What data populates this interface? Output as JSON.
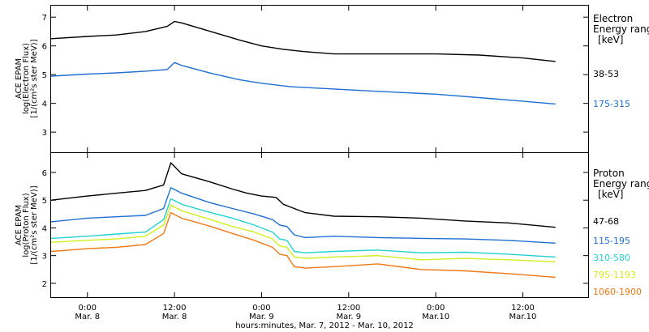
{
  "chart_data": [
    {
      "type": "line",
      "panel": "electron",
      "ylabel_lines": [
        "ACE EPAM",
        "log(Electron Flux)",
        "[1/(cm²s ster MeV)]"
      ],
      "legend_title": [
        "Electron",
        "Energy range",
        "[keV]"
      ],
      "ylim": [
        2.3,
        7.4
      ],
      "yticks": [
        "3",
        "4",
        "5",
        "6",
        "7"
      ],
      "xlim": [
        -5,
        69
      ],
      "series": [
        {
          "name": "38-53",
          "color": "#000000",
          "points": [
            [
              -5,
              6.25
            ],
            [
              0,
              6.33
            ],
            [
              4,
              6.38
            ],
            [
              8,
              6.5
            ],
            [
              11,
              6.68
            ],
            [
              12,
              6.85
            ],
            [
              13,
              6.8
            ],
            [
              17,
              6.5
            ],
            [
              21,
              6.2
            ],
            [
              24,
              6.0
            ],
            [
              27,
              5.88
            ],
            [
              30,
              5.8
            ],
            [
              34,
              5.72
            ],
            [
              40,
              5.72
            ],
            [
              48,
              5.72
            ],
            [
              54,
              5.68
            ],
            [
              60,
              5.58
            ],
            [
              64.5,
              5.46
            ]
          ]
        },
        {
          "name": "175-315",
          "color": "#1e6fd2",
          "points": [
            [
              -5,
              4.95
            ],
            [
              0,
              5.02
            ],
            [
              4,
              5.06
            ],
            [
              8,
              5.12
            ],
            [
              11,
              5.18
            ],
            [
              12,
              5.42
            ],
            [
              13,
              5.32
            ],
            [
              17,
              5.05
            ],
            [
              21,
              4.82
            ],
            [
              24,
              4.7
            ],
            [
              28,
              4.58
            ],
            [
              34,
              4.5
            ],
            [
              40,
              4.42
            ],
            [
              48,
              4.32
            ],
            [
              56,
              4.16
            ],
            [
              64.5,
              3.98
            ]
          ]
        }
      ]
    },
    {
      "type": "line",
      "panel": "proton",
      "ylabel_lines": [
        "ACE EPAM",
        "log(Proton Flux)",
        "[1/(cm²s ster MeV)]"
      ],
      "legend_title": [
        "Proton",
        "Energy range",
        "[keV]"
      ],
      "ylim": [
        1.5,
        6.7
      ],
      "yticks": [
        "2",
        "3",
        "4",
        "5",
        "6"
      ],
      "xlim": [
        -5,
        69
      ],
      "xticks": [
        {
          "x": 0,
          "time": "0:00",
          "date": "Mar. 8"
        },
        {
          "x": 12,
          "time": "12:00",
          "date": "Mar. 8"
        },
        {
          "x": 24,
          "time": "0:00",
          "date": "Mar. 9"
        },
        {
          "x": 36,
          "time": "12:00",
          "date": "Mar. 9"
        },
        {
          "x": 48,
          "time": "0:00",
          "date": "Mar.10"
        },
        {
          "x": 60,
          "time": "12:00",
          "date": "Mar.10"
        }
      ],
      "xlabel": "hours:minutes, Mar.  7, 2012 - Mar. 10, 2012",
      "series": [
        {
          "name": "47-68",
          "color": "#000000",
          "points": [
            [
              -5,
              5.0
            ],
            [
              0,
              5.15
            ],
            [
              4,
              5.25
            ],
            [
              8,
              5.35
            ],
            [
              10.5,
              5.55
            ],
            [
              11.5,
              6.35
            ],
            [
              13,
              5.95
            ],
            [
              17,
              5.65
            ],
            [
              20,
              5.4
            ],
            [
              22,
              5.25
            ],
            [
              24,
              5.15
            ],
            [
              26,
              5.1
            ],
            [
              27,
              4.85
            ],
            [
              28.5,
              4.7
            ],
            [
              30,
              4.55
            ],
            [
              34,
              4.42
            ],
            [
              40,
              4.4
            ],
            [
              46,
              4.35
            ],
            [
              52,
              4.25
            ],
            [
              58,
              4.18
            ],
            [
              64.5,
              4.02
            ]
          ]
        },
        {
          "name": "115-195",
          "color": "#1e6fd2",
          "points": [
            [
              -5,
              4.22
            ],
            [
              0,
              4.35
            ],
            [
              4,
              4.4
            ],
            [
              8,
              4.45
            ],
            [
              10.5,
              4.7
            ],
            [
              11.5,
              5.45
            ],
            [
              13,
              5.25
            ],
            [
              17,
              4.9
            ],
            [
              20,
              4.7
            ],
            [
              23,
              4.5
            ],
            [
              25.5,
              4.3
            ],
            [
              26.5,
              4.1
            ],
            [
              27.5,
              4.05
            ],
            [
              28.5,
              3.75
            ],
            [
              30,
              3.65
            ],
            [
              34,
              3.7
            ],
            [
              40,
              3.65
            ],
            [
              46,
              3.62
            ],
            [
              52,
              3.6
            ],
            [
              58,
              3.55
            ],
            [
              64.5,
              3.45
            ]
          ]
        },
        {
          "name": "310-580",
          "color": "#20d2d2",
          "points": [
            [
              -5,
              3.62
            ],
            [
              0,
              3.7
            ],
            [
              4,
              3.78
            ],
            [
              8,
              3.85
            ],
            [
              10.5,
              4.3
            ],
            [
              11.5,
              5.05
            ],
            [
              13,
              4.85
            ],
            [
              17,
              4.55
            ],
            [
              20,
              4.35
            ],
            [
              23,
              4.1
            ],
            [
              25.5,
              3.85
            ],
            [
              26.5,
              3.6
            ],
            [
              27.5,
              3.55
            ],
            [
              28.5,
              3.15
            ],
            [
              30,
              3.1
            ],
            [
              34,
              3.15
            ],
            [
              40,
              3.2
            ],
            [
              46,
              3.1
            ],
            [
              52,
              3.12
            ],
            [
              58,
              3.05
            ],
            [
              64.5,
              2.95
            ]
          ]
        },
        {
          "name": "795-1193",
          "color": "#d2ee1e",
          "points": [
            [
              -5,
              3.48
            ],
            [
              0,
              3.55
            ],
            [
              4,
              3.6
            ],
            [
              8,
              3.7
            ],
            [
              10.5,
              4.1
            ],
            [
              11.5,
              4.82
            ],
            [
              13,
              4.62
            ],
            [
              17,
              4.3
            ],
            [
              20,
              4.05
            ],
            [
              23,
              3.85
            ],
            [
              25.5,
              3.6
            ],
            [
              26.5,
              3.35
            ],
            [
              27.5,
              3.3
            ],
            [
              28.5,
              2.95
            ],
            [
              30,
              2.9
            ],
            [
              34,
              2.95
            ],
            [
              40,
              3.0
            ],
            [
              46,
              2.85
            ],
            [
              52,
              2.9
            ],
            [
              58,
              2.85
            ],
            [
              64.5,
              2.78
            ]
          ]
        },
        {
          "name": "1060-1900",
          "color": "#f07814",
          "points": [
            [
              -5,
              3.15
            ],
            [
              0,
              3.25
            ],
            [
              4,
              3.3
            ],
            [
              8,
              3.4
            ],
            [
              10.5,
              3.8
            ],
            [
              11.5,
              4.55
            ],
            [
              13,
              4.35
            ],
            [
              17,
              4.05
            ],
            [
              20,
              3.8
            ],
            [
              23,
              3.55
            ],
            [
              25.5,
              3.3
            ],
            [
              26.5,
              3.05
            ],
            [
              27.5,
              3.0
            ],
            [
              28.5,
              2.6
            ],
            [
              30,
              2.55
            ],
            [
              34,
              2.6
            ],
            [
              40,
              2.7
            ],
            [
              46,
              2.5
            ],
            [
              52,
              2.45
            ],
            [
              58,
              2.35
            ],
            [
              64.5,
              2.22
            ]
          ]
        }
      ]
    }
  ]
}
